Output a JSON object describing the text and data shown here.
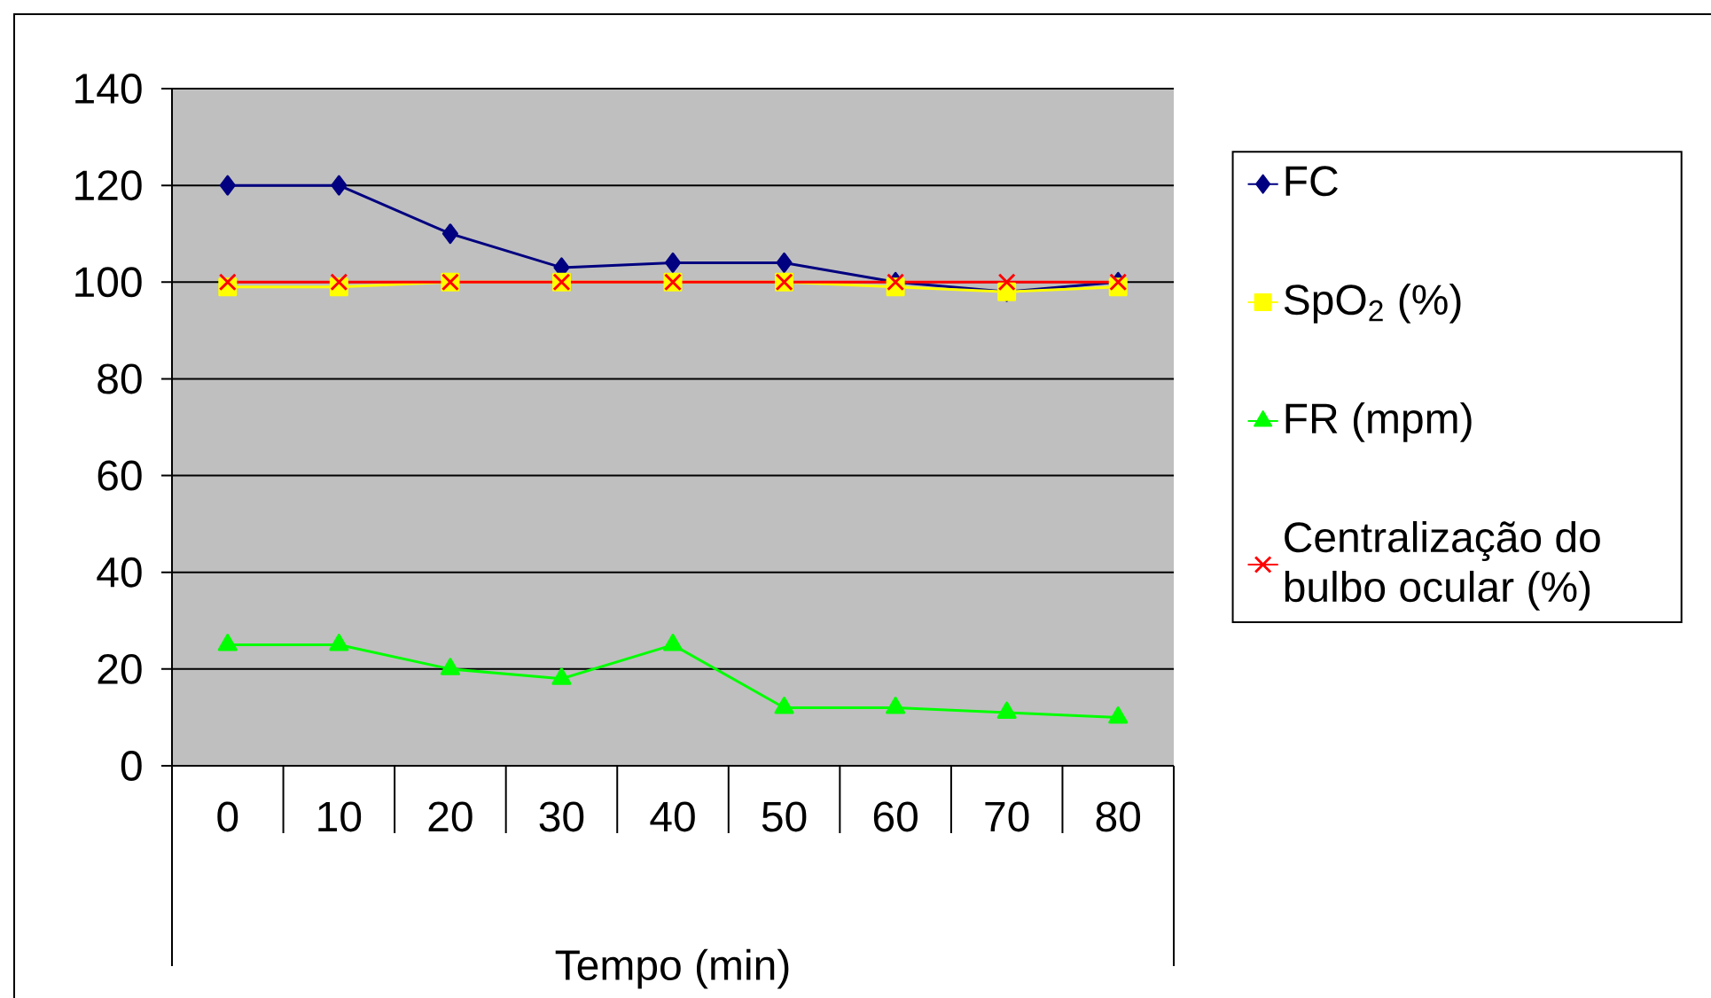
{
  "chart_data": {
    "type": "line",
    "xlabel": "Tempo (min)",
    "categories": [
      "0",
      "10",
      "20",
      "30",
      "40",
      "50",
      "60",
      "70",
      "80"
    ],
    "ylim": [
      0,
      140
    ],
    "yticks": [
      0,
      20,
      40,
      60,
      80,
      100,
      120,
      140
    ],
    "grid": "y",
    "legend": "right",
    "series": [
      {
        "name": "FC",
        "color": "#000080",
        "marker": "diamond",
        "values": [
          120,
          120,
          110,
          103,
          104,
          104,
          100,
          98,
          100
        ]
      },
      {
        "name": "SpO$_{2}$ (%)",
        "color": "#ffff00",
        "marker": "square",
        "values": [
          99,
          99,
          100,
          100,
          100,
          100,
          99,
          98,
          99
        ]
      },
      {
        "name": "FR (mpm)",
        "color": "#00ff00",
        "marker": "triangle",
        "values": [
          25,
          25,
          20,
          18,
          25,
          12,
          12,
          11,
          10
        ]
      },
      {
        "name": "Centralização do bulbo ocular (%)",
        "color": "#ff0000",
        "marker": "cross",
        "values": [
          100,
          100,
          100,
          100,
          100,
          100,
          100,
          100,
          100
        ]
      }
    ]
  }
}
